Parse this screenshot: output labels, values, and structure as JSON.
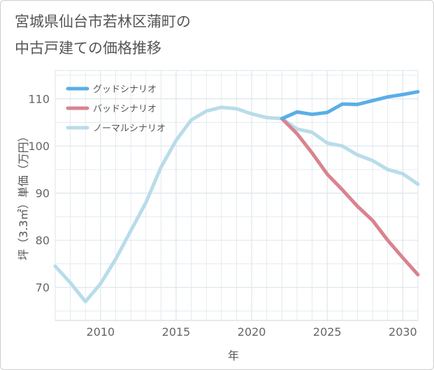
{
  "title_lines": [
    "宮城県仙台市若林区蒲町の",
    "中古戸建ての価格推移"
  ],
  "chart_data": {
    "type": "line",
    "title": "宮城県仙台市若林区蒲町の中古戸建ての価格推移",
    "xlabel": "年",
    "ylabel": "坪（3.3㎡）単価（万円）",
    "xlim": [
      2007,
      2031
    ],
    "ylim": [
      63,
      116
    ],
    "xticks": [
      2010,
      2015,
      2020,
      2025,
      2030
    ],
    "yticks": [
      70,
      80,
      90,
      100,
      110
    ],
    "grid": true,
    "legend_position": "top-left",
    "series": [
      {
        "name": "グッドシナリオ",
        "color": "#5aaee8",
        "x": [
          2022,
          2023,
          2024,
          2025,
          2026,
          2027,
          2028,
          2029,
          2030,
          2031
        ],
        "y": [
          105.8,
          107.2,
          106.7,
          107.1,
          108.9,
          108.8,
          109.6,
          110.4,
          110.9,
          111.5
        ]
      },
      {
        "name": "バッドシナリオ",
        "color": "#d9838e",
        "x": [
          2022,
          2023,
          2024,
          2025,
          2026,
          2027,
          2028,
          2029,
          2030,
          2031
        ],
        "y": [
          105.8,
          102.6,
          98.5,
          94.0,
          90.7,
          87.2,
          84.2,
          80.0,
          76.3,
          72.7
        ]
      },
      {
        "name": "ノーマルシナリオ",
        "color": "#b8dcea",
        "x": [
          2007,
          2008,
          2009,
          2010,
          2011,
          2012,
          2013,
          2014,
          2015,
          2016,
          2017,
          2018,
          2019,
          2020,
          2021,
          2022,
          2023,
          2024,
          2025,
          2026,
          2027,
          2028,
          2029,
          2030,
          2031
        ],
        "y": [
          74.5,
          71.0,
          67.0,
          70.8,
          76.0,
          82.0,
          88.0,
          95.5,
          101.2,
          105.5,
          107.4,
          108.2,
          107.9,
          106.8,
          106.0,
          105.8,
          103.6,
          102.9,
          100.6,
          100.0,
          98.1,
          96.9,
          95.0,
          94.1,
          91.9
        ]
      }
    ]
  }
}
